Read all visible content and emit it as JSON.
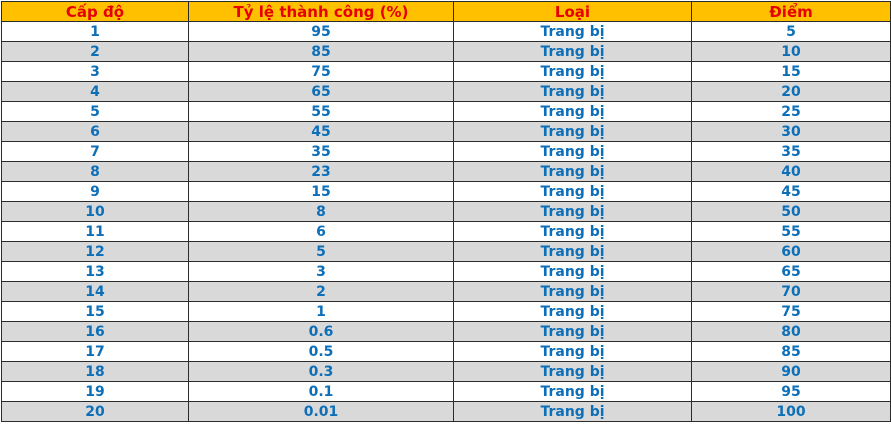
{
  "table": {
    "headers": [
      "Cấp độ",
      "Tỷ lệ thành công (%)",
      "Loại",
      "Điểm"
    ],
    "rows": [
      [
        "1",
        "95",
        "Trang bị",
        "5"
      ],
      [
        "2",
        "85",
        "Trang bị",
        "10"
      ],
      [
        "3",
        "75",
        "Trang bị",
        "15"
      ],
      [
        "4",
        "65",
        "Trang bị",
        "20"
      ],
      [
        "5",
        "55",
        "Trang bị",
        "25"
      ],
      [
        "6",
        "45",
        "Trang bị",
        "30"
      ],
      [
        "7",
        "35",
        "Trang bị",
        "35"
      ],
      [
        "8",
        "23",
        "Trang bị",
        "40"
      ],
      [
        "9",
        "15",
        "Trang bị",
        "45"
      ],
      [
        "10",
        "8",
        "Trang bị",
        "50"
      ],
      [
        "11",
        "6",
        "Trang bị",
        "55"
      ],
      [
        "12",
        "5",
        "Trang bị",
        "60"
      ],
      [
        "13",
        "3",
        "Trang bị",
        "65"
      ],
      [
        "14",
        "2",
        "Trang bị",
        "70"
      ],
      [
        "15",
        "1",
        "Trang bị",
        "75"
      ],
      [
        "16",
        "0.6",
        "Trang bị",
        "80"
      ],
      [
        "17",
        "0.5",
        "Trang bị",
        "85"
      ],
      [
        "18",
        "0.3",
        "Trang bị",
        "90"
      ],
      [
        "19",
        "0.1",
        "Trang bị",
        "95"
      ],
      [
        "20",
        "0.01",
        "Trang bị",
        "100"
      ]
    ]
  },
  "colors": {
    "header_bg": "#ffc000",
    "header_text": "#e60000",
    "cell_text": "#0d6fb8",
    "alt_row_bg": "#d9d9d9",
    "border": "#2b2b2b"
  }
}
